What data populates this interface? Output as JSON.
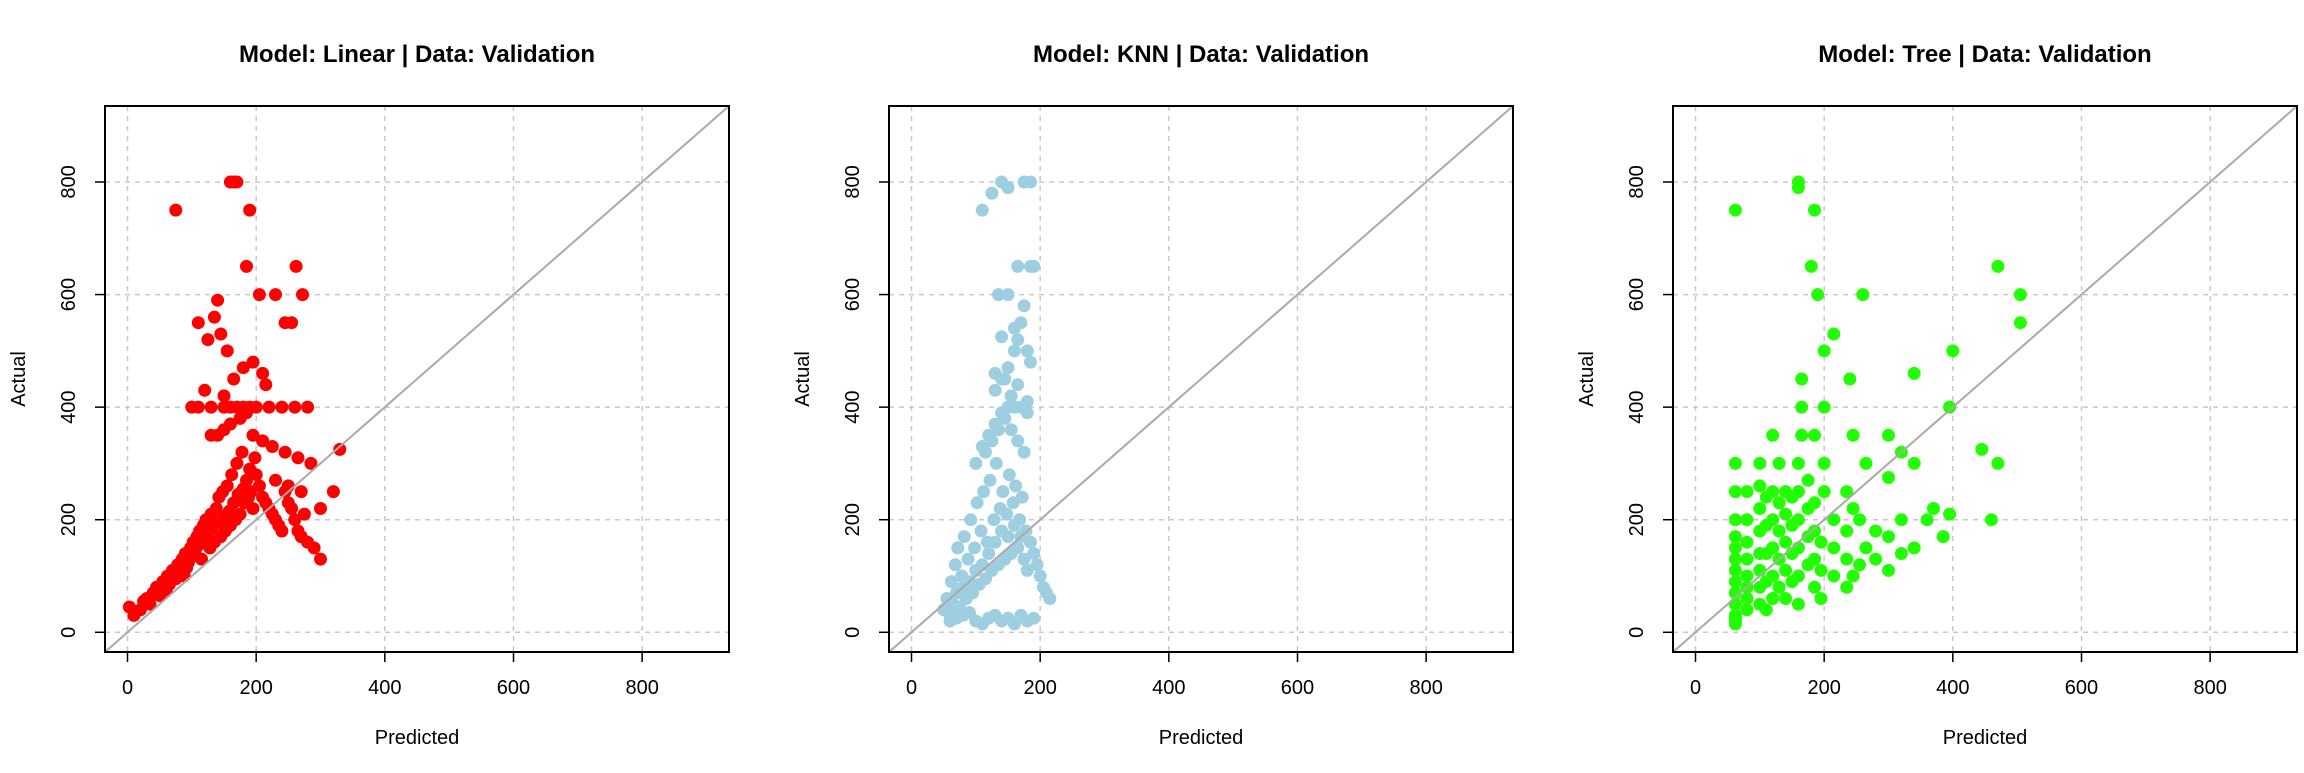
{
  "chart_data": [
    {
      "type": "scatter",
      "title": "Model: Linear | Data: Validation",
      "xlabel": "Predicted",
      "ylabel": "Actual",
      "xlim": [
        -35,
        935
      ],
      "ylim": [
        -35,
        935
      ],
      "xticks": [
        "0",
        "200",
        "400",
        "600",
        "800"
      ],
      "yticks": [
        "0",
        "200",
        "400",
        "600",
        "800"
      ],
      "grid": true,
      "reference_line": "y = x",
      "color": "#ff0000",
      "x": [
        3,
        10,
        20,
        25,
        30,
        35,
        40,
        45,
        50,
        55,
        60,
        62,
        65,
        70,
        75,
        78,
        80,
        85,
        88,
        90,
        92,
        95,
        98,
        100,
        102,
        105,
        108,
        110,
        112,
        115,
        118,
        120,
        122,
        125,
        128,
        130,
        132,
        135,
        138,
        140,
        142,
        145,
        148,
        150,
        152,
        155,
        158,
        160,
        162,
        165,
        168,
        170,
        172,
        175,
        178,
        180,
        182,
        185,
        188,
        190,
        192,
        195,
        198,
        200,
        205,
        210,
        215,
        220,
        225,
        230,
        235,
        240,
        245,
        250,
        255,
        260,
        265,
        270,
        275,
        280,
        290,
        300,
        330,
        75,
        100,
        110,
        130,
        150,
        160,
        170,
        180,
        190,
        200,
        220,
        240,
        260,
        280,
        130,
        140,
        150,
        160,
        175,
        185,
        195,
        210,
        225,
        245,
        265,
        285,
        320,
        300,
        270,
        250,
        230,
        160,
        165,
        170,
        190,
        205,
        230,
        262,
        272,
        140,
        185,
        120,
        150,
        165,
        180,
        195,
        110,
        125,
        135,
        145,
        155,
        210,
        215,
        245,
        255
      ],
      "y": [
        45,
        30,
        40,
        55,
        60,
        50,
        70,
        80,
        65,
        90,
        75,
        100,
        85,
        110,
        95,
        120,
        105,
        130,
        100,
        140,
        115,
        125,
        150,
        135,
        160,
        145,
        170,
        155,
        180,
        130,
        190,
        165,
        200,
        175,
        150,
        210,
        185,
        160,
        220,
        195,
        240,
        170,
        250,
        205,
        180,
        260,
        215,
        190,
        280,
        230,
        200,
        300,
        245,
        210,
        320,
        255,
        230,
        270,
        240,
        290,
        250,
        220,
        310,
        280,
        260,
        240,
        230,
        220,
        210,
        200,
        190,
        180,
        250,
        230,
        220,
        200,
        180,
        170,
        210,
        160,
        150,
        130,
        325,
        750,
        400,
        400,
        400,
        400,
        400,
        400,
        400,
        400,
        400,
        400,
        400,
        400,
        400,
        350,
        350,
        360,
        370,
        380,
        390,
        350,
        340,
        330,
        320,
        310,
        300,
        250,
        220,
        250,
        260,
        270,
        800,
        800,
        800,
        750,
        600,
        600,
        650,
        600,
        590,
        650,
        430,
        420,
        450,
        470,
        480,
        550,
        520,
        560,
        530,
        500,
        460,
        440,
        550,
        550
      ]
    },
    {
      "type": "scatter",
      "title": "Model: KNN | Data: Validation",
      "xlabel": "Predicted",
      "ylabel": "Actual",
      "xlim": [
        -35,
        935
      ],
      "ylim": [
        -35,
        935
      ],
      "xticks": [
        "0",
        "200",
        "400",
        "600",
        "800"
      ],
      "yticks": [
        "0",
        "200",
        "400",
        "600",
        "800"
      ],
      "grid": true,
      "reference_line": "y = x",
      "color": "#9ecfe0",
      "x": [
        50,
        55,
        60,
        62,
        65,
        68,
        70,
        72,
        75,
        78,
        80,
        82,
        85,
        88,
        90,
        92,
        95,
        98,
        100,
        102,
        105,
        108,
        110,
        112,
        115,
        118,
        120,
        122,
        125,
        128,
        130,
        132,
        135,
        138,
        140,
        142,
        145,
        148,
        150,
        152,
        155,
        158,
        160,
        162,
        165,
        168,
        170,
        172,
        175,
        178,
        180,
        185,
        190,
        195,
        200,
        205,
        210,
        215,
        60,
        70,
        80,
        90,
        100,
        110,
        120,
        130,
        140,
        150,
        160,
        170,
        180,
        190,
        110,
        120,
        130,
        140,
        150,
        160,
        170,
        180,
        100,
        115,
        125,
        135,
        145,
        155,
        165,
        175,
        130,
        145,
        150,
        160,
        165,
        170,
        180,
        185,
        135,
        150,
        165,
        190,
        140,
        160,
        175,
        185,
        110,
        125,
        140,
        150,
        175,
        185,
        130,
        140,
        155,
        165,
        180
      ],
      "y": [
        40,
        60,
        30,
        90,
        50,
        120,
        70,
        150,
        45,
        100,
        80,
        170,
        60,
        130,
        90,
        200,
        70,
        150,
        110,
        230,
        85,
        180,
        120,
        250,
        95,
        160,
        140,
        270,
        110,
        200,
        160,
        300,
        120,
        220,
        180,
        250,
        130,
        210,
        170,
        280,
        140,
        230,
        190,
        260,
        150,
        200,
        170,
        240,
        130,
        180,
        110,
        160,
        140,
        120,
        100,
        80,
        70,
        60,
        20,
        25,
        30,
        35,
        20,
        15,
        25,
        30,
        20,
        25,
        15,
        30,
        20,
        25,
        330,
        350,
        370,
        390,
        400,
        400,
        400,
        390,
        300,
        320,
        340,
        360,
        380,
        360,
        340,
        320,
        430,
        450,
        470,
        500,
        520,
        550,
        500,
        480,
        600,
        600,
        650,
        650,
        525,
        540,
        580,
        650,
        750,
        780,
        800,
        790,
        800,
        800,
        460,
        450,
        420,
        440,
        410
      ]
    },
    {
      "type": "scatter",
      "title": "Model: Tree | Data: Validation",
      "xlabel": "Predicted",
      "ylabel": "Actual",
      "xlim": [
        -35,
        935
      ],
      "ylim": [
        -35,
        935
      ],
      "xticks": [
        "0",
        "200",
        "400",
        "600",
        "800"
      ],
      "yticks": [
        "0",
        "200",
        "400",
        "600",
        "800"
      ],
      "grid": true,
      "reference_line": "y = x",
      "color": "#22ff00",
      "x": [
        62,
        62,
        62,
        62,
        62,
        62,
        62,
        62,
        62,
        62,
        62,
        62,
        80,
        80,
        80,
        80,
        80,
        80,
        80,
        80,
        100,
        100,
        100,
        100,
        100,
        100,
        100,
        100,
        110,
        110,
        110,
        110,
        110,
        120,
        120,
        120,
        120,
        120,
        120,
        130,
        130,
        130,
        130,
        130,
        140,
        140,
        140,
        140,
        140,
        150,
        150,
        150,
        150,
        160,
        160,
        160,
        160,
        160,
        160,
        165,
        165,
        165,
        175,
        175,
        175,
        175,
        185,
        185,
        185,
        185,
        185,
        195,
        195,
        195,
        200,
        200,
        200,
        215,
        215,
        215,
        235,
        235,
        235,
        235,
        245,
        245,
        255,
        255,
        265,
        265,
        280,
        280,
        300,
        300,
        320,
        320,
        340,
        340,
        360,
        370,
        385,
        395,
        445,
        460,
        470,
        505,
        470,
        505,
        160,
        160,
        185,
        180,
        190,
        200,
        215,
        240,
        260,
        300,
        320,
        340,
        395,
        400,
        300,
        245,
        62,
        62,
        62
      ],
      "y": [
        30,
        50,
        70,
        90,
        110,
        130,
        150,
        170,
        200,
        250,
        300,
        20,
        40,
        60,
        80,
        100,
        130,
        160,
        200,
        250,
        50,
        80,
        110,
        140,
        180,
        220,
        260,
        300,
        40,
        90,
        140,
        190,
        240,
        60,
        100,
        150,
        200,
        250,
        350,
        80,
        130,
        180,
        230,
        300,
        60,
        110,
        160,
        210,
        250,
        90,
        140,
        190,
        240,
        50,
        100,
        150,
        200,
        250,
        300,
        350,
        400,
        450,
        120,
        170,
        220,
        270,
        80,
        130,
        180,
        230,
        350,
        60,
        110,
        160,
        250,
        300,
        400,
        100,
        150,
        200,
        80,
        130,
        180,
        250,
        100,
        350,
        120,
        200,
        150,
        300,
        130,
        180,
        110,
        170,
        140,
        200,
        150,
        300,
        200,
        220,
        170,
        210,
        325,
        200,
        300,
        550,
        650,
        600,
        800,
        790,
        750,
        650,
        600,
        500,
        530,
        450,
        600,
        350,
        320,
        460,
        400,
        500,
        275,
        220,
        15,
        25,
        750
      ]
    }
  ]
}
